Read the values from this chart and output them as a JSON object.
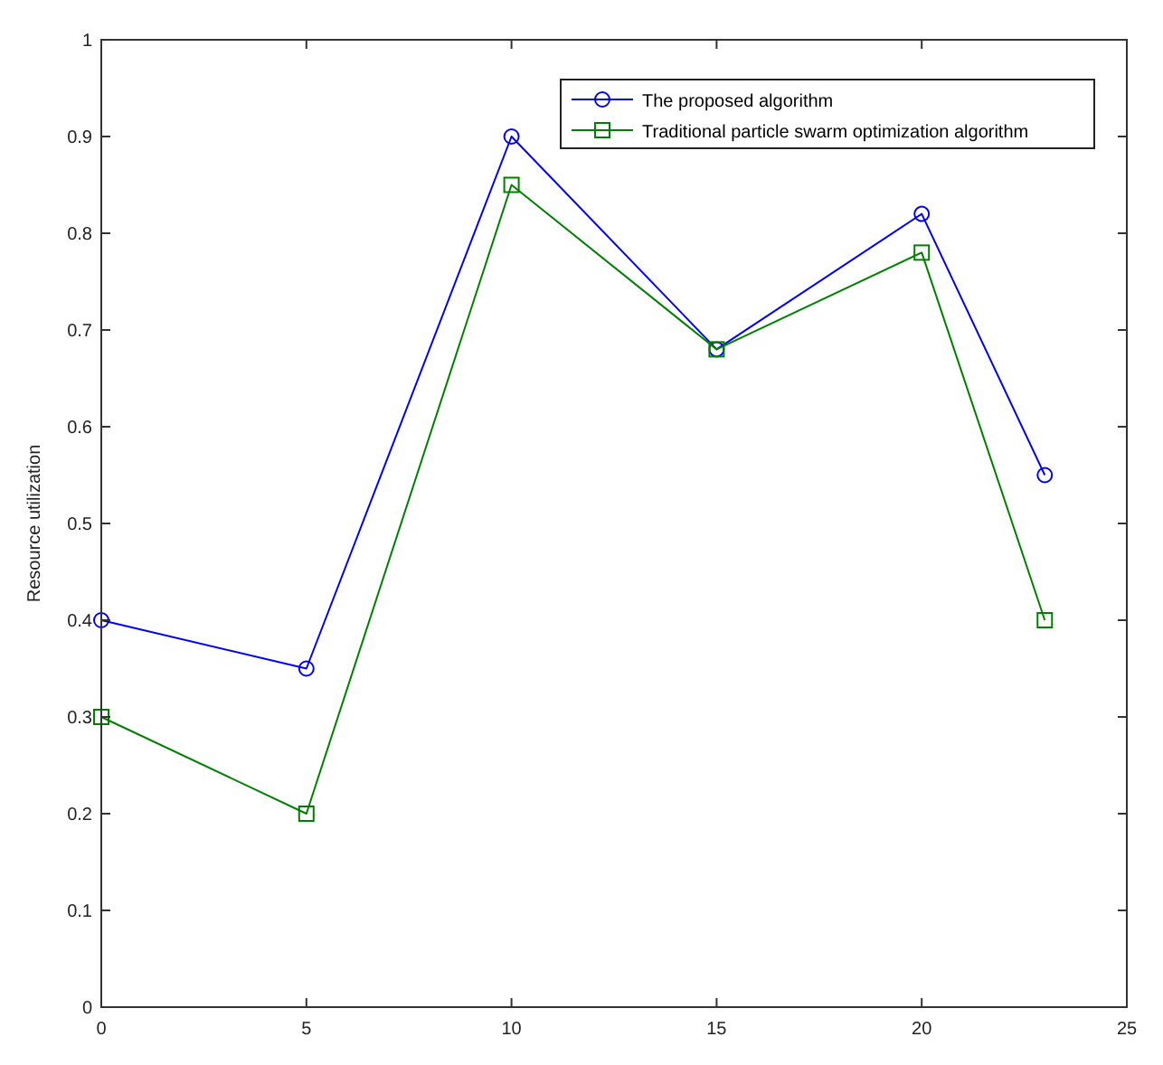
{
  "chart_data": {
    "type": "line",
    "ylabel": "Resource utilization",
    "x": [
      0,
      5,
      10,
      15,
      20,
      23
    ],
    "series": [
      {
        "name": "The proposed algorithm",
        "color": "#0000ff",
        "marker": "circle",
        "values": [
          0.4,
          0.35,
          0.9,
          0.68,
          0.82,
          0.55
        ]
      },
      {
        "name": "Traditional particle swarm optimization algorithm",
        "color": "#008000",
        "marker": "square",
        "values": [
          0.3,
          0.2,
          0.85,
          0.68,
          0.78,
          0.4
        ]
      }
    ],
    "xlim": [
      0,
      25
    ],
    "xticks": [
      0,
      5,
      10,
      15,
      20,
      25
    ],
    "ylim": [
      0,
      1
    ],
    "yticks": [
      0,
      0.1,
      0.2,
      0.3,
      0.4,
      0.5,
      0.6,
      0.7,
      0.8,
      0.9,
      1
    ],
    "grid": false,
    "legend": "top right",
    "line_style": "solid"
  }
}
